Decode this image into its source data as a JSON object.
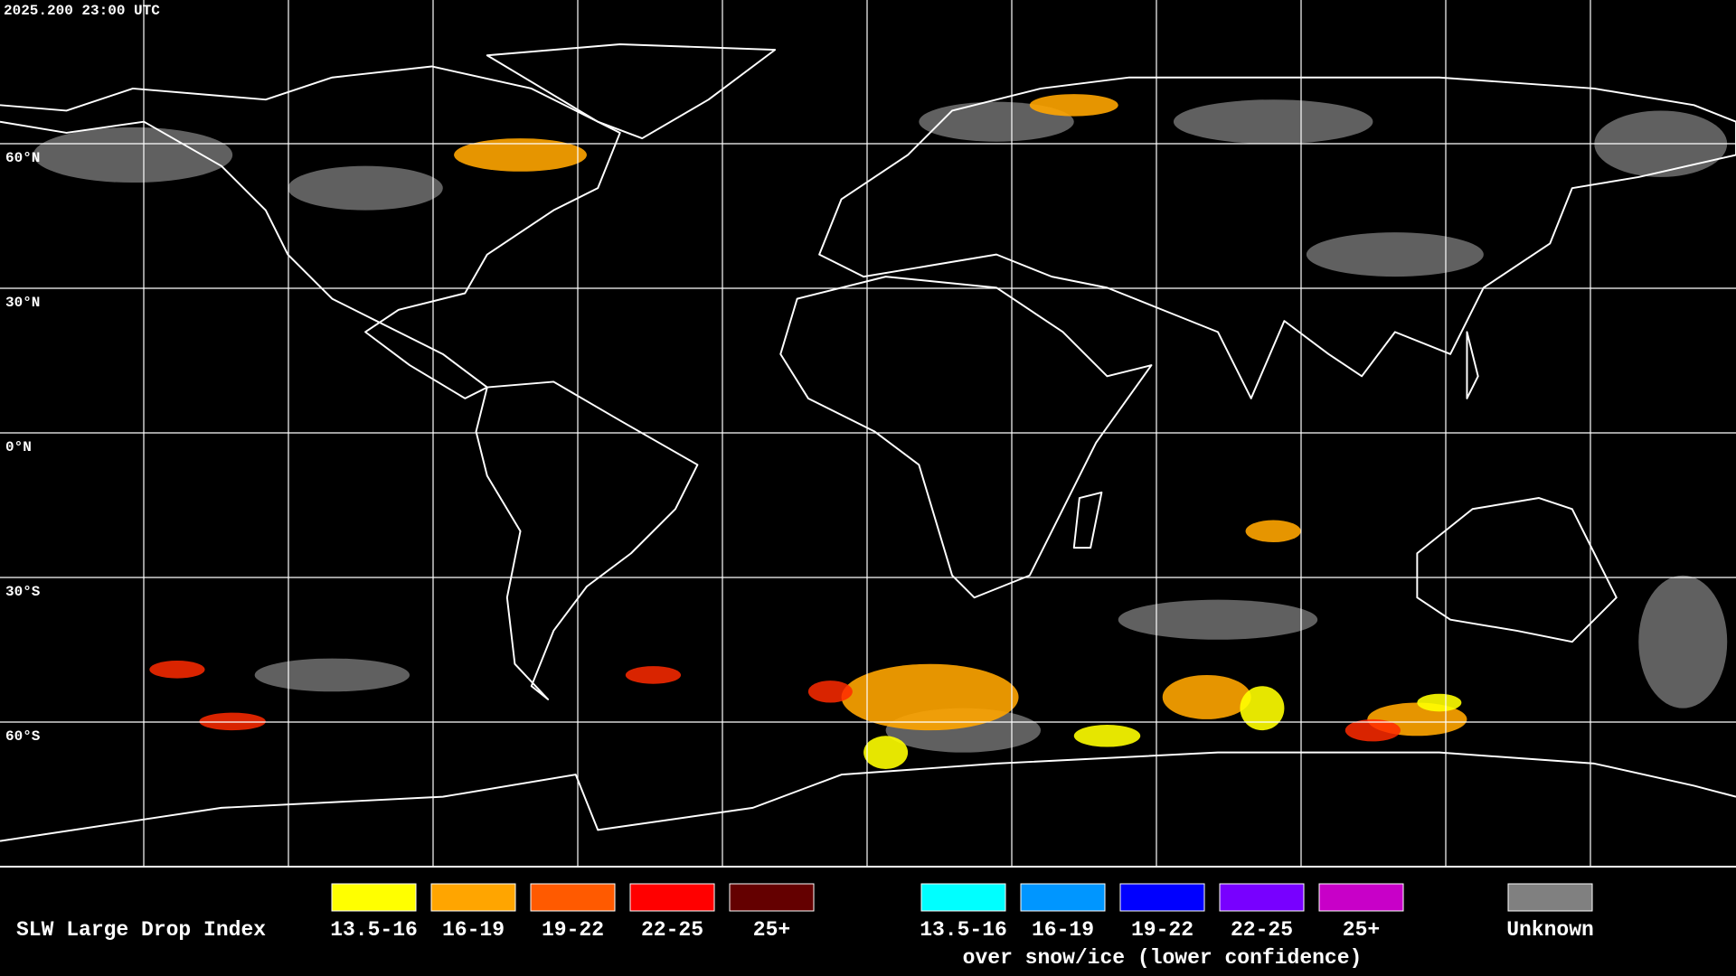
{
  "header": {
    "timestamp": "2025.200 23:00 UTC"
  },
  "map": {
    "lat_labels": [
      "60°N",
      "30°N",
      "0°N",
      "30°S",
      "60°S"
    ]
  },
  "legend": {
    "title": "SLW Large Drop Index",
    "groups": [
      {
        "items": [
          {
            "label": "13.5-16",
            "color": "#ffff00"
          },
          {
            "label": "16-19",
            "color": "#ffa500"
          },
          {
            "label": "19-22",
            "color": "#ff5a00"
          },
          {
            "label": "22-25",
            "color": "#ff0000"
          },
          {
            "label": "25+",
            "color": "#640000"
          }
        ]
      },
      {
        "items": [
          {
            "label": "13.5-16",
            "color": "#00ffff"
          },
          {
            "label": "16-19",
            "color": "#0096ff"
          },
          {
            "label": "19-22",
            "color": "#0000ff"
          },
          {
            "label": "22-25",
            "color": "#7800ff"
          },
          {
            "label": "25+",
            "color": "#c800c8"
          }
        ],
        "caption": "over snow/ice (lower confidence)"
      },
      {
        "items": [
          {
            "label": "Unknown",
            "color": "#808080"
          }
        ]
      }
    ]
  }
}
